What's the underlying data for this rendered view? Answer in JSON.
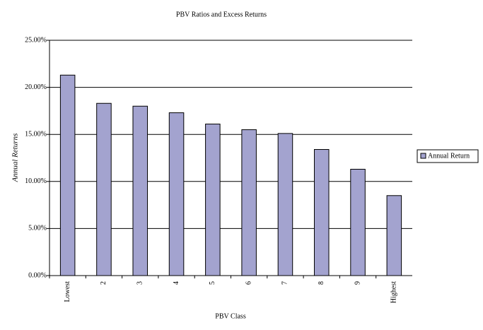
{
  "chart_data": {
    "type": "bar",
    "title": "PBV Ratios and Excess Returns",
    "x_label": "PBV Class",
    "y_label": "Annual Returns",
    "categories": [
      "Lowest",
      "2",
      "3",
      "4",
      "5",
      "6",
      "7",
      "8",
      "9",
      "Highest"
    ],
    "series": [
      {
        "name": "Annual Return",
        "color": "#a3a3cf",
        "values": [
          21.3,
          18.3,
          18.0,
          17.3,
          16.1,
          15.5,
          15.1,
          13.4,
          11.3,
          8.5
        ]
      }
    ],
    "ylim": [
      0,
      25
    ],
    "yticks": [
      {
        "value": 0,
        "label": "0.00%"
      },
      {
        "value": 5,
        "label": "5.00%"
      },
      {
        "value": 10,
        "label": "10.00%"
      },
      {
        "value": 15,
        "label": "15.00%"
      },
      {
        "value": 20,
        "label": "20.00%"
      },
      {
        "value": 25,
        "label": "25.00%"
      }
    ],
    "grid": true,
    "legend": "right"
  }
}
